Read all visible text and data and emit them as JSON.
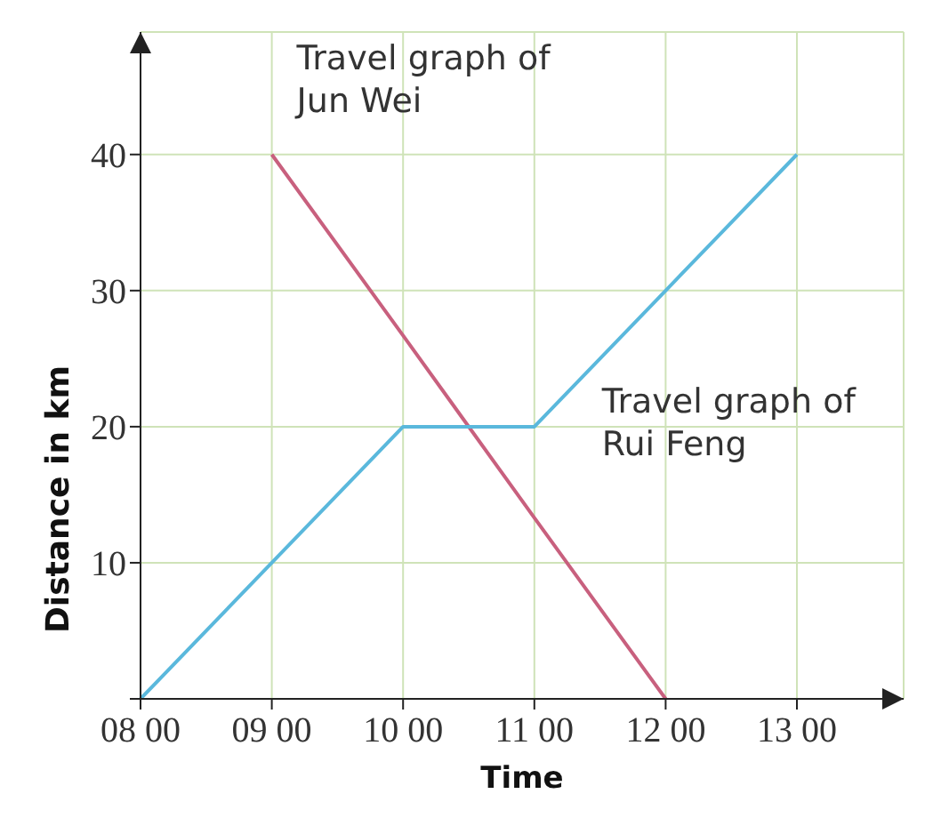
{
  "chart_data": {
    "type": "line",
    "xlabel": "Time",
    "ylabel": "Distance in km",
    "categories": [
      "08 00",
      "09 00",
      "10 00",
      "11 00",
      "12 00",
      "13 00"
    ],
    "ylim": [
      0,
      49
    ],
    "yticks": [
      {
        "value": 0,
        "label": null
      },
      10,
      20,
      30,
      40
    ],
    "grid": true,
    "marker": "none",
    "line_style": "solid",
    "series": [
      {
        "name": "Travel graph of Jun Wei",
        "color": "#c8607e",
        "values": [
          null,
          40,
          26.7,
          13.3,
          0,
          null
        ]
      },
      {
        "name": "Travel graph of Rui Feng",
        "color": "#5ab8dc",
        "values": [
          0,
          10,
          20,
          20,
          30,
          40
        ]
      }
    ]
  }
}
